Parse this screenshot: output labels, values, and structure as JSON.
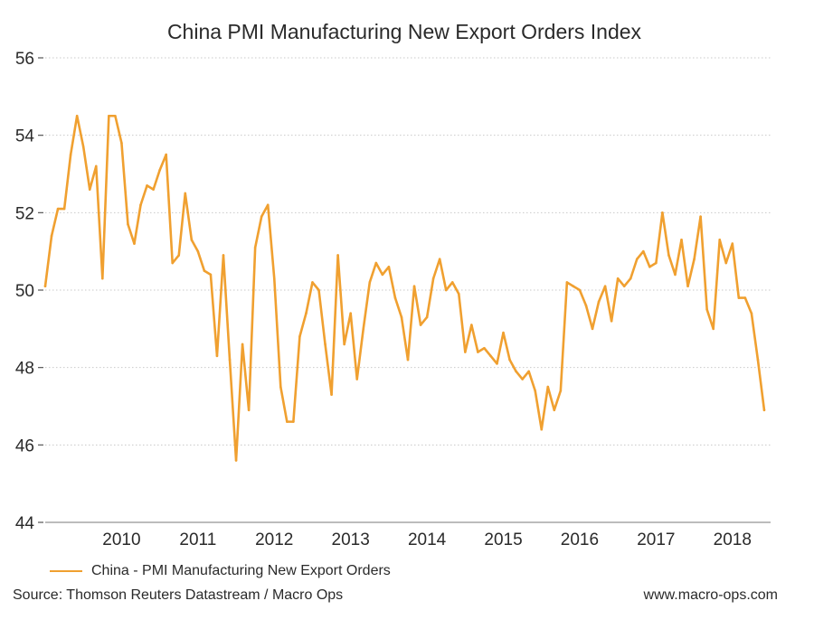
{
  "chart_data": {
    "type": "line",
    "title": "China PMI Manufacturing New Export Orders Index",
    "ylim": [
      44,
      56
    ],
    "yticks": [
      "44",
      "46",
      "48",
      "50",
      "52",
      "54",
      "56"
    ],
    "xlim": [
      2009.0,
      2018.5
    ],
    "xticks": [
      "2010",
      "2011",
      "2012",
      "2013",
      "2014",
      "2015",
      "2016",
      "2017",
      "2018"
    ],
    "grid": true,
    "legend_position": "bottom-left",
    "series": [
      {
        "name": "China - PMI Manufacturing New Export Orders",
        "color": "#F0A030",
        "x": [
          "2009-01",
          "2009-02",
          "2009-03",
          "2009-04",
          "2009-05",
          "2009-06",
          "2009-07",
          "2009-08",
          "2009-09",
          "2009-10",
          "2009-11",
          "2009-12",
          "2010-01",
          "2010-02",
          "2010-03",
          "2010-04",
          "2010-05",
          "2010-06",
          "2010-07",
          "2010-08",
          "2010-09",
          "2010-10",
          "2010-11",
          "2010-12",
          "2011-01",
          "2011-02",
          "2011-03",
          "2011-04",
          "2011-05",
          "2011-06",
          "2011-07",
          "2011-08",
          "2011-09",
          "2011-10",
          "2011-11",
          "2011-12",
          "2012-01",
          "2012-02",
          "2012-03",
          "2012-04",
          "2012-05",
          "2012-06",
          "2012-07",
          "2012-08",
          "2012-09",
          "2012-10",
          "2012-11",
          "2012-12",
          "2013-01",
          "2013-02",
          "2013-03",
          "2013-04",
          "2013-05",
          "2013-06",
          "2013-07",
          "2013-08",
          "2013-09",
          "2013-10",
          "2013-11",
          "2013-12",
          "2014-01",
          "2014-02",
          "2014-03",
          "2014-04",
          "2014-05",
          "2014-06",
          "2014-07",
          "2014-08",
          "2014-09",
          "2014-10",
          "2014-11",
          "2014-12",
          "2015-01",
          "2015-02",
          "2015-03",
          "2015-04",
          "2015-05",
          "2015-06",
          "2015-07",
          "2015-08",
          "2015-09",
          "2015-10",
          "2015-11",
          "2015-12",
          "2016-01",
          "2016-02",
          "2016-03",
          "2016-04",
          "2016-05",
          "2016-06",
          "2016-07",
          "2016-08",
          "2016-09",
          "2016-10",
          "2016-11",
          "2016-12",
          "2017-01",
          "2017-02",
          "2017-03",
          "2017-04",
          "2017-05",
          "2017-06",
          "2017-07",
          "2017-08",
          "2017-09",
          "2017-10",
          "2017-11",
          "2017-12",
          "2018-01",
          "2018-02",
          "2018-03",
          "2018-04",
          "2018-05",
          "2018-06"
        ],
        "values": [
          50.1,
          51.4,
          52.1,
          52.1,
          53.5,
          54.5,
          53.7,
          52.6,
          53.2,
          50.3,
          54.5,
          54.5,
          53.8,
          51.7,
          51.2,
          52.2,
          52.7,
          52.6,
          53.1,
          53.5,
          50.7,
          50.9,
          52.5,
          51.3,
          51.0,
          50.5,
          50.4,
          48.3,
          50.9,
          48.2,
          45.6,
          48.6,
          46.9,
          51.1,
          51.9,
          52.2,
          50.3,
          47.5,
          46.6,
          46.6,
          48.8,
          49.4,
          50.2,
          50.0,
          48.6,
          47.3,
          50.9,
          48.6,
          49.4,
          47.7,
          49.0,
          50.2,
          50.7,
          50.4,
          50.6,
          49.8,
          49.3,
          48.2,
          50.1,
          49.1,
          49.3,
          50.3,
          50.8,
          50.0,
          50.2,
          49.9,
          48.4,
          49.1,
          48.4,
          48.5,
          48.3,
          48.1,
          48.9,
          48.2,
          47.9,
          47.7,
          47.9,
          47.4,
          46.4,
          47.5,
          46.9,
          47.4,
          50.2,
          50.1,
          50.0,
          49.6,
          49.0,
          49.7,
          50.1,
          49.2,
          50.3,
          50.1,
          50.3,
          50.8,
          51.0,
          50.6,
          50.7,
          52.0,
          50.9,
          50.4,
          51.3,
          50.1,
          50.8,
          51.9,
          49.5,
          49.0,
          51.3,
          50.7,
          51.2,
          49.8,
          49.8,
          49.4,
          48.2,
          46.9
        ]
      }
    ]
  },
  "footer": {
    "source": "Source: Thomson Reuters Datastream / Macro Ops",
    "website": "www.macro-ops.com"
  }
}
